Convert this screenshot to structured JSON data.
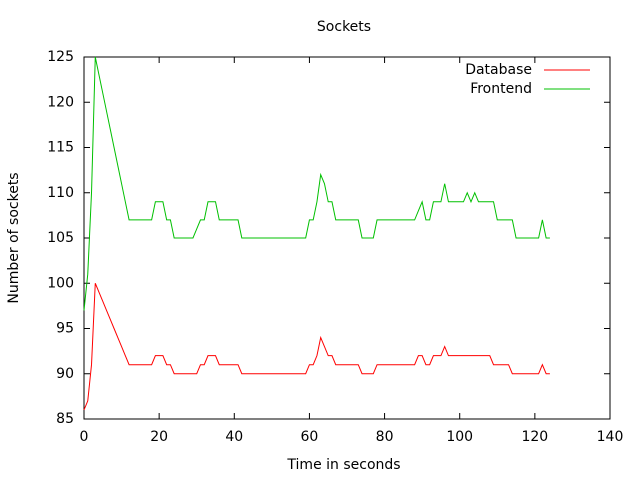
{
  "chart_data": {
    "type": "line",
    "title": "Sockets",
    "x_label": "Time in seconds",
    "y_label": "Number of sockets",
    "x": [
      0,
      1,
      2,
      3,
      4,
      5,
      6,
      7,
      8,
      9,
      10,
      11,
      12,
      13,
      14,
      15,
      16,
      17,
      18,
      19,
      20,
      21,
      22,
      23,
      24,
      25,
      26,
      27,
      28,
      29,
      30,
      31,
      32,
      33,
      34,
      35,
      36,
      37,
      38,
      39,
      40,
      41,
      42,
      43,
      44,
      45,
      46,
      47,
      48,
      49,
      50,
      51,
      52,
      53,
      54,
      55,
      56,
      57,
      58,
      59,
      60,
      61,
      62,
      63,
      64,
      65,
      66,
      67,
      68,
      69,
      70,
      71,
      72,
      73,
      74,
      75,
      76,
      77,
      78,
      79,
      80,
      81,
      82,
      83,
      84,
      85,
      86,
      87,
      88,
      89,
      90,
      91,
      92,
      93,
      94,
      95,
      96,
      97,
      98,
      99,
      100,
      101,
      102,
      103,
      104,
      105,
      106,
      107,
      108,
      109,
      110,
      111,
      112,
      113,
      114,
      115,
      116,
      117,
      118,
      119,
      120,
      121,
      122,
      123,
      124
    ],
    "series": [
      {
        "name": "Database",
        "color": "#ff0000",
        "values": [
          86,
          87,
          91,
          100,
          99,
          98,
          97,
          96,
          95,
          94,
          93,
          92,
          91,
          91,
          91,
          91,
          91,
          91,
          91,
          92,
          92,
          92,
          91,
          91,
          90,
          90,
          90,
          90,
          90,
          90,
          90,
          91,
          91,
          92,
          92,
          92,
          91,
          91,
          91,
          91,
          91,
          91,
          90,
          90,
          90,
          90,
          90,
          90,
          90,
          90,
          90,
          90,
          90,
          90,
          90,
          90,
          90,
          90,
          90,
          90,
          91,
          91,
          92,
          94,
          93,
          92,
          92,
          91,
          91,
          91,
          91,
          91,
          91,
          91,
          90,
          90,
          90,
          90,
          91,
          91,
          91,
          91,
          91,
          91,
          91,
          91,
          91,
          91,
          91,
          92,
          92,
          91,
          91,
          92,
          92,
          92,
          93,
          92,
          92,
          92,
          92,
          92,
          92,
          92,
          92,
          92,
          92,
          92,
          92,
          91,
          91,
          91,
          91,
          91,
          90,
          90,
          90,
          90,
          90,
          90,
          90,
          90,
          91,
          90,
          90
        ]
      },
      {
        "name": "Frontend",
        "color": "#00c000",
        "values": [
          97,
          101,
          110,
          125,
          123,
          121,
          119,
          117,
          115,
          113,
          111,
          109,
          107,
          107,
          107,
          107,
          107,
          107,
          107,
          109,
          109,
          109,
          107,
          107,
          105,
          105,
          105,
          105,
          105,
          105,
          106,
          107,
          107,
          109,
          109,
          109,
          107,
          107,
          107,
          107,
          107,
          107,
          105,
          105,
          105,
          105,
          105,
          105,
          105,
          105,
          105,
          105,
          105,
          105,
          105,
          105,
          105,
          105,
          105,
          105,
          107,
          107,
          109,
          112,
          111,
          109,
          109,
          107,
          107,
          107,
          107,
          107,
          107,
          107,
          105,
          105,
          105,
          105,
          107,
          107,
          107,
          107,
          107,
          107,
          107,
          107,
          107,
          107,
          107,
          108,
          109,
          107,
          107,
          109,
          109,
          109,
          111,
          109,
          109,
          109,
          109,
          109,
          110,
          109,
          110,
          109,
          109,
          109,
          109,
          109,
          107,
          107,
          107,
          107,
          107,
          105,
          105,
          105,
          105,
          105,
          105,
          105,
          107,
          105,
          105
        ]
      }
    ],
    "xlim": [
      0,
      140
    ],
    "xticks": [
      0,
      20,
      40,
      60,
      80,
      100,
      120,
      140
    ],
    "ylim": [
      85,
      125
    ],
    "yticks": [
      85,
      90,
      95,
      100,
      105,
      110,
      115,
      120,
      125
    ],
    "legend": "top-right"
  }
}
